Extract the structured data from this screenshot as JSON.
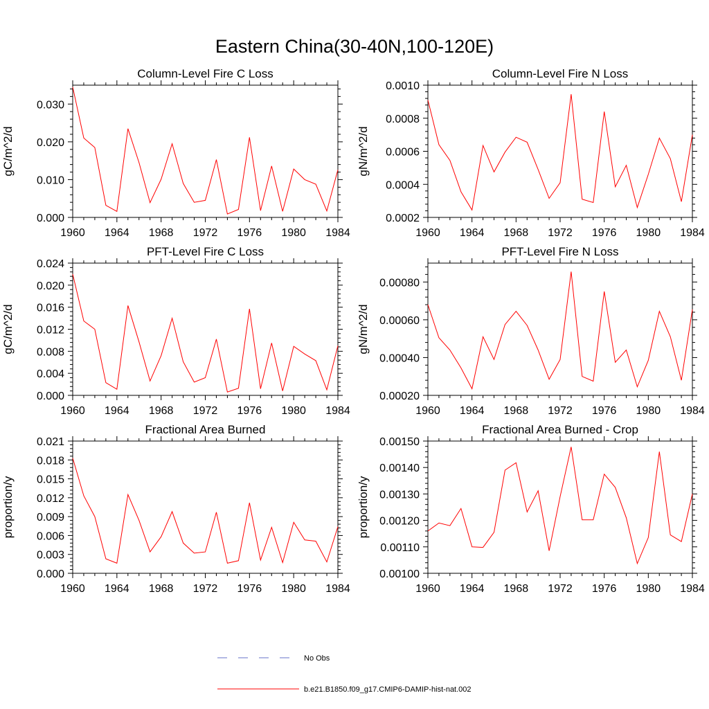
{
  "figure_title": "Eastern China(30-40N,100-120E)",
  "legend": {
    "items": [
      {
        "label": "No Obs",
        "color": "#6670c8",
        "style": "dashed"
      },
      {
        "label": "b.e21.B1850.f09_g17.CMIP6-DAMIP-hist-nat.002",
        "color": "#ff0000",
        "style": "solid"
      }
    ]
  },
  "chart_data": [
    {
      "type": "line",
      "title": "Column-Level Fire C Loss",
      "ylabel": "gC/m^2/d",
      "xlim": [
        1960,
        1984
      ],
      "ylim": [
        0.0,
        0.035
      ],
      "xticks": [
        1960,
        1964,
        1968,
        1972,
        1976,
        1980,
        1984
      ],
      "yticks": [
        0.0,
        0.01,
        0.02,
        0.03
      ],
      "ytick_labels": [
        "0.000",
        "0.010",
        "0.020",
        "0.030"
      ],
      "x": [
        1960,
        1961,
        1962,
        1963,
        1964,
        1965,
        1966,
        1967,
        1968,
        1969,
        1970,
        1971,
        1972,
        1973,
        1974,
        1975,
        1976,
        1977,
        1978,
        1979,
        1980,
        1981,
        1982,
        1983,
        1984
      ],
      "series": [
        {
          "name": "b.e21.B1850.f09_g17.CMIP6-DAMIP-hist-nat.002",
          "color": "#ff0000",
          "values": [
            0.0345,
            0.021,
            0.0185,
            0.0032,
            0.0016,
            0.0235,
            0.0145,
            0.0039,
            0.0101,
            0.0195,
            0.009,
            0.004,
            0.0045,
            0.0153,
            0.0009,
            0.0021,
            0.0212,
            0.0018,
            0.0136,
            0.0016,
            0.0128,
            0.01,
            0.0088,
            0.0017,
            0.0126
          ]
        }
      ]
    },
    {
      "type": "line",
      "title": "Column-Level Fire N Loss",
      "ylabel": "gN/m^2/d",
      "xlim": [
        1960,
        1984
      ],
      "ylim": [
        0.0002,
        0.001
      ],
      "xticks": [
        1960,
        1964,
        1968,
        1972,
        1976,
        1980,
        1984
      ],
      "yticks": [
        0.0002,
        0.0004,
        0.0006,
        0.0008,
        0.001
      ],
      "ytick_labels": [
        "0.0002",
        "0.0004",
        "0.0006",
        "0.0008",
        "0.0010"
      ],
      "x": [
        1960,
        1961,
        1962,
        1963,
        1964,
        1965,
        1966,
        1967,
        1968,
        1969,
        1970,
        1971,
        1972,
        1973,
        1974,
        1975,
        1976,
        1977,
        1978,
        1979,
        1980,
        1981,
        1982,
        1983,
        1984
      ],
      "series": [
        {
          "name": "b.e21.B1850.f09_g17.CMIP6-DAMIP-hist-nat.002",
          "color": "#ff0000",
          "values": [
            0.00091,
            0.00064,
            0.000545,
            0.000355,
            0.000245,
            0.000635,
            0.000475,
            0.000595,
            0.000685,
            0.000655,
            0.00049,
            0.000315,
            0.00041,
            0.000945,
            0.00031,
            0.00029,
            0.00084,
            0.000385,
            0.000515,
            0.00026,
            0.00046,
            0.00068,
            0.000555,
            0.000295,
            0.0007
          ]
        }
      ]
    },
    {
      "type": "line",
      "title": "PFT-Level Fire C Loss",
      "ylabel": "gC/m^2/d",
      "xlim": [
        1960,
        1984
      ],
      "ylim": [
        0.0,
        0.024
      ],
      "xticks": [
        1960,
        1964,
        1968,
        1972,
        1976,
        1980,
        1984
      ],
      "yticks": [
        0.0,
        0.004,
        0.008,
        0.012,
        0.016,
        0.02,
        0.024
      ],
      "ytick_labels": [
        "0.000",
        "0.004",
        "0.008",
        "0.012",
        "0.016",
        "0.020",
        "0.024"
      ],
      "x": [
        1960,
        1961,
        1962,
        1963,
        1964,
        1965,
        1966,
        1967,
        1968,
        1969,
        1970,
        1971,
        1972,
        1973,
        1974,
        1975,
        1976,
        1977,
        1978,
        1979,
        1980,
        1981,
        1982,
        1983,
        1984
      ],
      "series": [
        {
          "name": "b.e21.B1850.f09_g17.CMIP6-DAMIP-hist-nat.002",
          "color": "#ff0000",
          "values": [
            0.022,
            0.0135,
            0.012,
            0.0023,
            0.0011,
            0.0163,
            0.0097,
            0.0026,
            0.0072,
            0.014,
            0.0061,
            0.0024,
            0.0032,
            0.0102,
            0.0006,
            0.0013,
            0.0157,
            0.0012,
            0.0095,
            0.0008,
            0.0089,
            0.0075,
            0.0063,
            0.001,
            0.009
          ]
        }
      ]
    },
    {
      "type": "line",
      "title": "PFT-Level Fire N Loss",
      "ylabel": "gN/m^2/d",
      "xlim": [
        1960,
        1984
      ],
      "ylim": [
        0.0002,
        0.0009
      ],
      "xticks": [
        1960,
        1964,
        1968,
        1972,
        1976,
        1980,
        1984
      ],
      "yticks": [
        0.0002,
        0.0004,
        0.0006,
        0.0008
      ],
      "ytick_labels": [
        "0.00020",
        "0.00040",
        "0.00060",
        "0.00080"
      ],
      "x": [
        1960,
        1961,
        1962,
        1963,
        1964,
        1965,
        1966,
        1967,
        1968,
        1969,
        1970,
        1971,
        1972,
        1973,
        1974,
        1975,
        1976,
        1977,
        1978,
        1979,
        1980,
        1981,
        1982,
        1983,
        1984
      ],
      "series": [
        {
          "name": "b.e21.B1850.f09_g17.CMIP6-DAMIP-hist-nat.002",
          "color": "#ff0000",
          "values": [
            0.00068,
            0.000505,
            0.00044,
            0.000345,
            0.000235,
            0.00051,
            0.00039,
            0.000575,
            0.000645,
            0.00057,
            0.00044,
            0.000285,
            0.00039,
            0.000855,
            0.0003,
            0.000275,
            0.00075,
            0.000375,
            0.00044,
            0.000245,
            0.000385,
            0.000645,
            0.00051,
            0.00028,
            0.000655
          ]
        }
      ]
    },
    {
      "type": "line",
      "title": "Fractional Area Burned",
      "ylabel": "proportion/y",
      "xlim": [
        1960,
        1984
      ],
      "ylim": [
        0.0,
        0.021
      ],
      "xticks": [
        1960,
        1964,
        1968,
        1972,
        1976,
        1980,
        1984
      ],
      "yticks": [
        0.0,
        0.003,
        0.006,
        0.009,
        0.012,
        0.015,
        0.018,
        0.021
      ],
      "ytick_labels": [
        "0.000",
        "0.003",
        "0.006",
        "0.009",
        "0.012",
        "0.015",
        "0.018",
        "0.021"
      ],
      "x": [
        1960,
        1961,
        1962,
        1963,
        1964,
        1965,
        1966,
        1967,
        1968,
        1969,
        1970,
        1971,
        1972,
        1973,
        1974,
        1975,
        1976,
        1977,
        1978,
        1979,
        1980,
        1981,
        1982,
        1983,
        1984
      ],
      "series": [
        {
          "name": "b.e21.B1850.f09_g17.CMIP6-DAMIP-hist-nat.002",
          "color": "#ff0000",
          "values": [
            0.0183,
            0.0123,
            0.009,
            0.0023,
            0.0016,
            0.0125,
            0.0084,
            0.0034,
            0.0058,
            0.0098,
            0.0048,
            0.0032,
            0.0034,
            0.0097,
            0.0016,
            0.002,
            0.0112,
            0.0021,
            0.0073,
            0.0017,
            0.0081,
            0.0053,
            0.0051,
            0.0018,
            0.0074
          ]
        }
      ]
    },
    {
      "type": "line",
      "title": "Fractional Area Burned - Crop",
      "ylabel": "proportion/y",
      "xlim": [
        1960,
        1984
      ],
      "ylim": [
        0.001,
        0.0015
      ],
      "xticks": [
        1960,
        1964,
        1968,
        1972,
        1976,
        1980,
        1984
      ],
      "yticks": [
        0.001,
        0.0011,
        0.0012,
        0.0013,
        0.0014,
        0.0015
      ],
      "ytick_labels": [
        "0.00100",
        "0.00110",
        "0.00120",
        "0.00130",
        "0.00140",
        "0.00150"
      ],
      "x": [
        1960,
        1961,
        1962,
        1963,
        1964,
        1965,
        1966,
        1967,
        1968,
        1969,
        1970,
        1971,
        1972,
        1973,
        1974,
        1975,
        1976,
        1977,
        1978,
        1979,
        1980,
        1981,
        1982,
        1983,
        1984
      ],
      "series": [
        {
          "name": "b.e21.B1850.f09_g17.CMIP6-DAMIP-hist-nat.002",
          "color": "#ff0000",
          "values": [
            0.00116,
            0.00119,
            0.00118,
            0.001245,
            0.0011,
            0.001098,
            0.001155,
            0.00139,
            0.001418,
            0.001232,
            0.001312,
            0.001085,
            0.00129,
            0.001478,
            0.001202,
            0.001202,
            0.001375,
            0.001325,
            0.00121,
            0.001037,
            0.001135,
            0.00146,
            0.001145,
            0.00112,
            0.0013
          ]
        }
      ]
    }
  ]
}
